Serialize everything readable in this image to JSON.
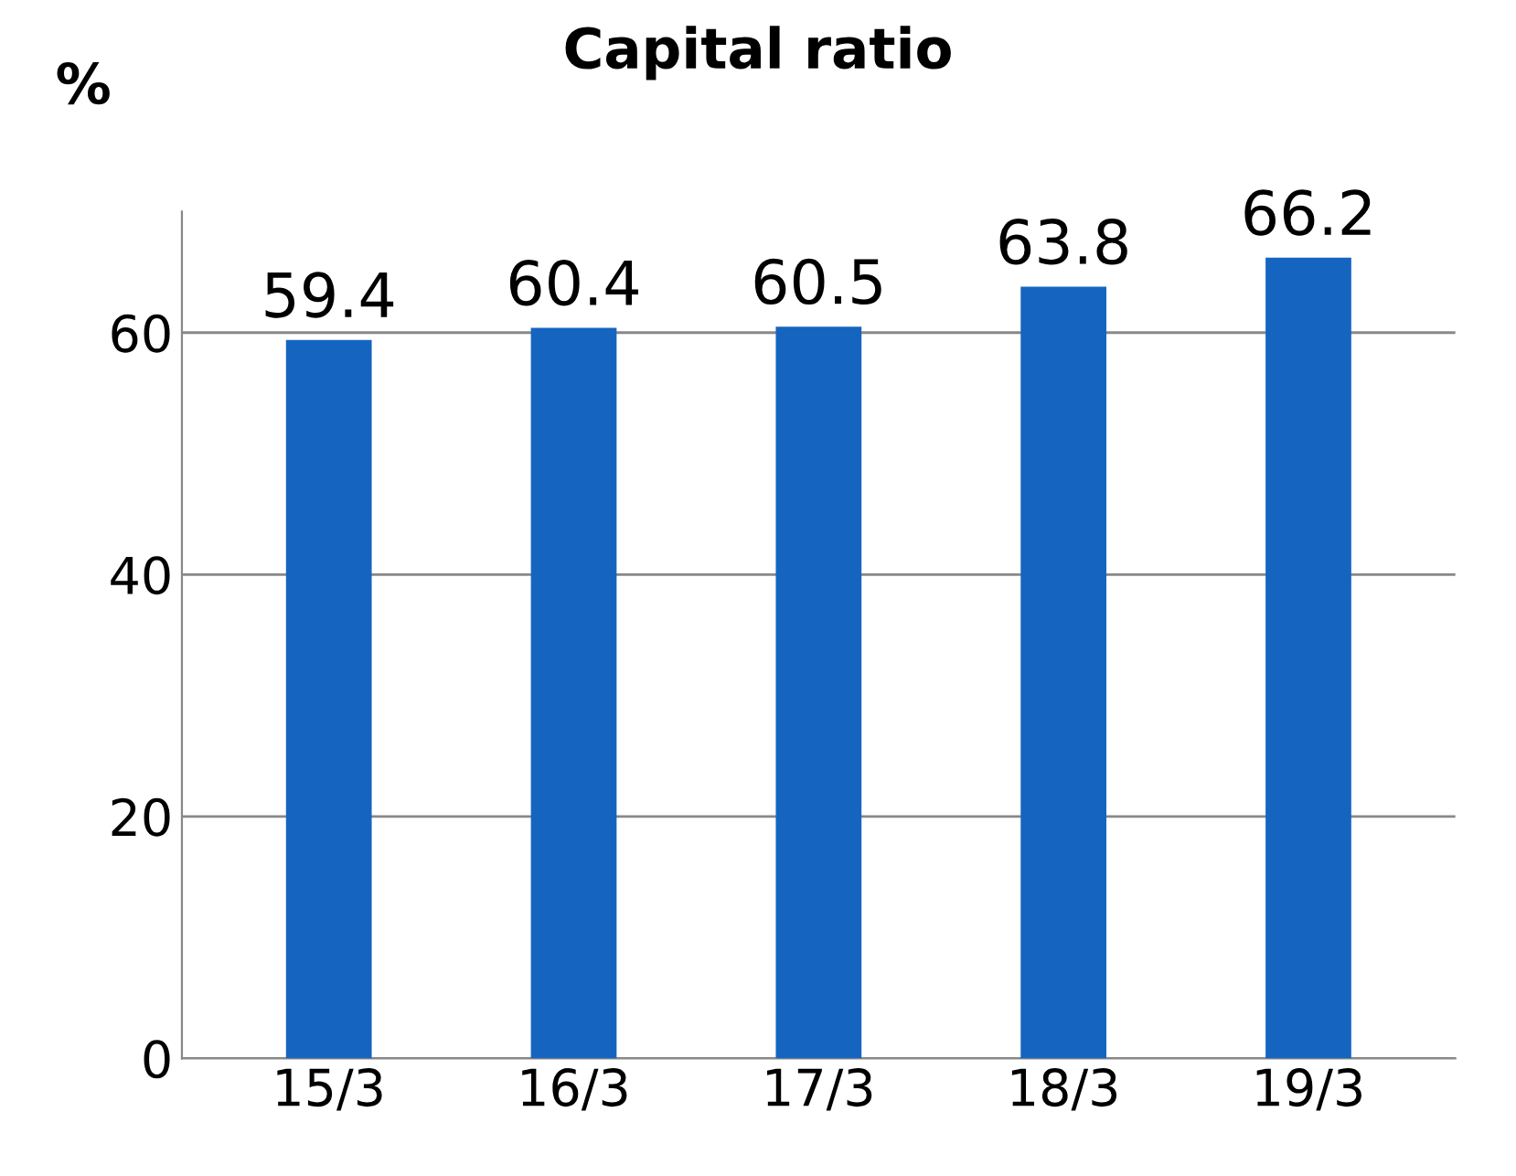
{
  "chart_data": {
    "type": "bar",
    "title": "Capital ratio",
    "ylabel": "%",
    "categories": [
      "15/3",
      "16/3",
      "17/3",
      "18/3",
      "19/3"
    ],
    "values": [
      59.4,
      60.4,
      60.5,
      63.8,
      66.2
    ],
    "color": "#1565c0",
    "ylim": [
      0,
      70
    ],
    "yticks": [
      0,
      20,
      40,
      60
    ],
    "grid": "y",
    "data_labels": true
  }
}
